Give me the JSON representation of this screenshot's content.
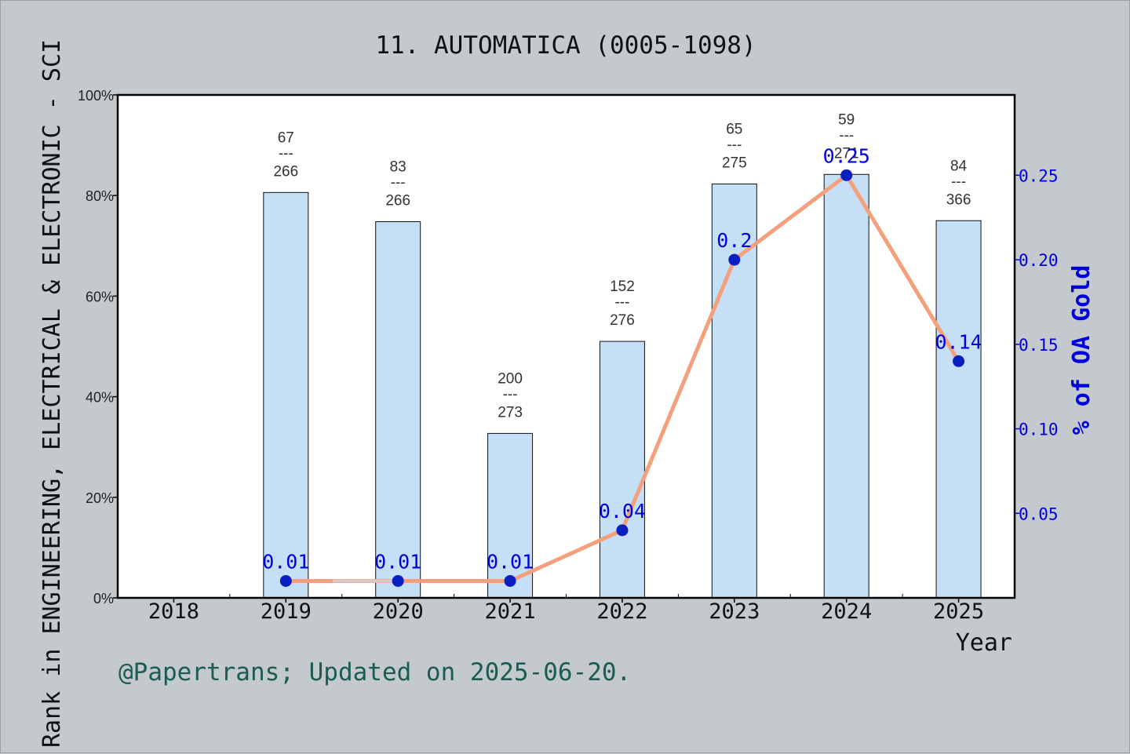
{
  "chart_data": {
    "type": "bar",
    "title": "11. AUTOMATICA (0005-1098)",
    "xlabel": "Year",
    "ylabel": "Rank in ENGINEERING, ELECTRICAL & ELECTRONIC - SCI",
    "y2label": "% of OA Gold",
    "categories": [
      "2018",
      "2019",
      "2020",
      "2021",
      "2022",
      "2023",
      "2024",
      "2025"
    ],
    "ylim": [
      0,
      100
    ],
    "y_ticks": [
      "0%",
      "20%",
      "40%",
      "60%",
      "80%",
      "100%"
    ],
    "y2lim": [
      0,
      0.2975
    ],
    "y2_ticks": [
      "0.05",
      "0.10",
      "0.15",
      "0.20",
      "0.25"
    ],
    "bars": {
      "values": [
        null,
        80.6,
        74.8,
        32.7,
        51.0,
        82.3,
        84.2,
        75.0
      ],
      "rank": [
        "",
        "67",
        "83",
        "200",
        "152",
        "65",
        "59",
        "84"
      ],
      "total": [
        "",
        "266",
        "266",
        "273",
        "276",
        "275",
        "271",
        "366"
      ],
      "separator": "---",
      "color": "#c5dff6"
    },
    "line": {
      "values": [
        null,
        0.01,
        0.01,
        0.01,
        0.04,
        0.2,
        0.25,
        0.14
      ],
      "labels": [
        "",
        "0.01",
        "0.01",
        "0.01",
        "0.04",
        "0.2",
        "0.25",
        "0.14"
      ],
      "color": "#f4a07c",
      "overlay_color": "#d4d4e2",
      "marker_color": "#0a1fbf"
    },
    "grid": false,
    "legend": "none"
  },
  "footer": {
    "credit": "@Papertrans; Updated on 2025-06-20."
  },
  "colors": {
    "background": "#c4c9cd",
    "plot": "#ffffff",
    "y2_axis": "#0000dd",
    "label_blue": "#0000dd",
    "footer": "#1a5c52"
  }
}
